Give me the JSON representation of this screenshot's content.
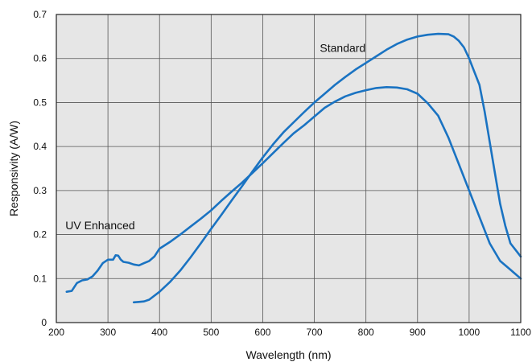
{
  "chart_data": {
    "type": "line",
    "title": "",
    "xlabel": "Wavelength (nm)",
    "ylabel": "Responsivity (A/W)",
    "xlim": [
      200,
      1100
    ],
    "ylim": [
      0,
      0.7
    ],
    "xticks": [
      "200",
      "300",
      "400",
      "500",
      "600",
      "700",
      "800",
      "900",
      "1000",
      "1100"
    ],
    "yticks": [
      "0",
      "0.1",
      "0.2",
      "0.3",
      "0.4",
      "0.5",
      "0.6",
      "0.7"
    ],
    "grid": true,
    "plot_background": "#e6e6e6",
    "line_color": "#1a73c2",
    "annotations": [
      {
        "text": "Standard",
        "x": 755,
        "y": 0.615
      },
      {
        "text": "UV Enhanced",
        "x": 285,
        "y": 0.212
      }
    ],
    "series": [
      {
        "name": "Standard",
        "x": [
          350,
          360,
          370,
          380,
          400,
          420,
          440,
          460,
          480,
          500,
          520,
          540,
          560,
          580,
          600,
          620,
          640,
          660,
          680,
          700,
          720,
          740,
          760,
          780,
          800,
          820,
          840,
          860,
          880,
          900,
          920,
          940,
          960,
          970,
          980,
          990,
          1000,
          1010,
          1020,
          1030,
          1040,
          1050,
          1060,
          1070,
          1080,
          1090,
          1100
        ],
        "y": [
          0.046,
          0.047,
          0.048,
          0.052,
          0.07,
          0.092,
          0.118,
          0.148,
          0.18,
          0.213,
          0.245,
          0.278,
          0.31,
          0.343,
          0.375,
          0.405,
          0.432,
          0.455,
          0.478,
          0.5,
          0.52,
          0.54,
          0.558,
          0.575,
          0.59,
          0.605,
          0.62,
          0.633,
          0.643,
          0.65,
          0.654,
          0.656,
          0.655,
          0.65,
          0.64,
          0.625,
          0.6,
          0.57,
          0.54,
          0.48,
          0.41,
          0.34,
          0.27,
          0.22,
          0.18,
          0.165,
          0.15
        ]
      },
      {
        "name": "UV Enhanced",
        "x": [
          220,
          230,
          240,
          250,
          260,
          270,
          280,
          290,
          300,
          310,
          315,
          320,
          325,
          330,
          340,
          350,
          360,
          370,
          380,
          390,
          400,
          420,
          440,
          460,
          480,
          500,
          520,
          540,
          560,
          580,
          600,
          620,
          640,
          660,
          680,
          700,
          720,
          740,
          760,
          780,
          800,
          820,
          840,
          860,
          880,
          900,
          920,
          940,
          960,
          980,
          1000,
          1020,
          1040,
          1060,
          1080,
          1100
        ],
        "y": [
          0.07,
          0.072,
          0.09,
          0.096,
          0.098,
          0.105,
          0.118,
          0.135,
          0.143,
          0.143,
          0.153,
          0.152,
          0.143,
          0.138,
          0.136,
          0.132,
          0.13,
          0.135,
          0.14,
          0.15,
          0.168,
          0.183,
          0.2,
          0.218,
          0.236,
          0.255,
          0.277,
          0.298,
          0.318,
          0.34,
          0.362,
          0.385,
          0.408,
          0.43,
          0.448,
          0.468,
          0.488,
          0.502,
          0.514,
          0.522,
          0.528,
          0.533,
          0.535,
          0.534,
          0.53,
          0.52,
          0.498,
          0.47,
          0.42,
          0.36,
          0.3,
          0.24,
          0.18,
          0.14,
          0.12,
          0.1
        ]
      }
    ]
  }
}
